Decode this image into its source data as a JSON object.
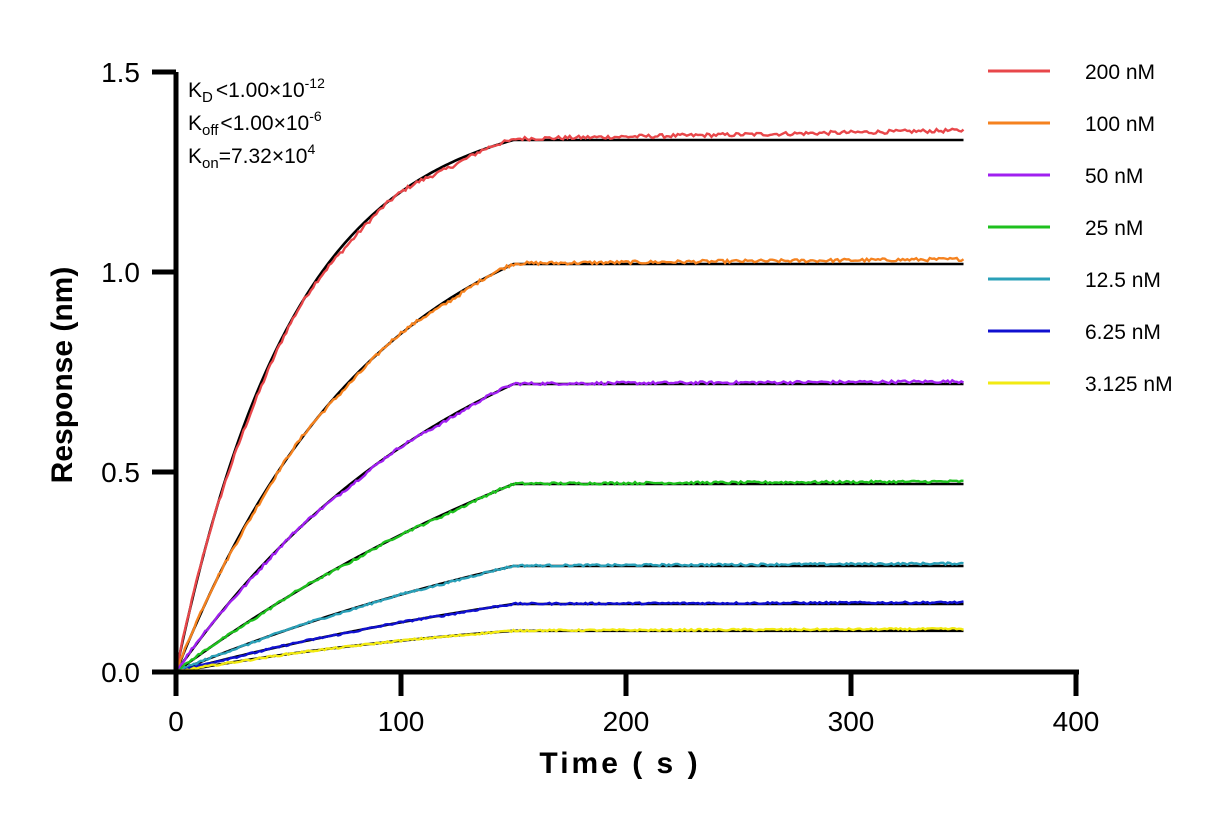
{
  "chart_data": {
    "type": "line",
    "title": "",
    "xlabel": "Time ( s )",
    "ylabel": "Response (nm)",
    "xlim": [
      0,
      400
    ],
    "ylim": [
      0,
      1.5
    ],
    "xticks": [
      "0",
      "100",
      "200",
      "300",
      "400"
    ],
    "yticks": [
      "0.0",
      "0.5",
      "1.0",
      "1.5"
    ],
    "legend_position": "top-right",
    "association_end": 150,
    "dissociation_end": 350,
    "kinetics": {
      "kd": {
        "base": "K",
        "sub": "D",
        "rel": "<",
        "mantissa": "1.00",
        "exp": "-12"
      },
      "koff": {
        "base": "K",
        "sub": "off",
        "rel": "<",
        "mantissa": "1.00",
        "exp": "-6"
      },
      "kon": {
        "base": "K",
        "sub": "on",
        "rel": "=",
        "mantissa": "7.32",
        "exp": "4"
      }
    },
    "series": [
      {
        "name": "200 nM",
        "color": "#e8474a",
        "plateau": 1.33,
        "kobs": 0.019,
        "drift": 0.03
      },
      {
        "name": "100 nM",
        "color": "#f5821f",
        "plateau": 1.02,
        "kobs": 0.0113,
        "drift": 0.015
      },
      {
        "name": "50 nM",
        "color": "#a020f0",
        "plateau": 0.72,
        "kobs": 0.0075,
        "drift": 0.008
      },
      {
        "name": "25 nM",
        "color": "#1ec01e",
        "plateau": 0.47,
        "kobs": 0.004,
        "drift": 0.008
      },
      {
        "name": "12.5 nM",
        "color": "#2aa0b8",
        "plateau": 0.265,
        "kobs": 0.004,
        "drift": 0.008
      },
      {
        "name": "6.25 nM",
        "color": "#1010d0",
        "plateau": 0.17,
        "kobs": 0.004,
        "drift": 0.005
      },
      {
        "name": "3.125 nM",
        "color": "#f2ea12",
        "plateau": 0.103,
        "kobs": 0.006,
        "drift": 0.006
      }
    ],
    "fit_color": "#000000"
  }
}
